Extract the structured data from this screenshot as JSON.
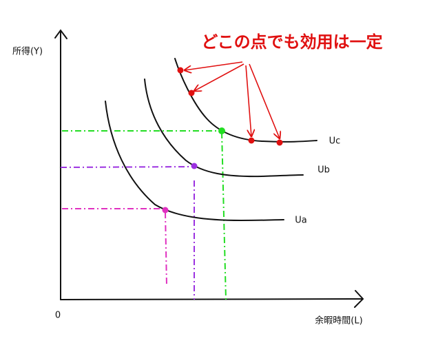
{
  "axes": {
    "y_label": "所得(Y)",
    "x_label": "余暇時間(L)",
    "origin": "0"
  },
  "annotation": "どこの点でも効用は一定",
  "curves": [
    {
      "label": "Uc"
    },
    {
      "label": "Ub"
    },
    {
      "label": "Ua"
    }
  ]
}
